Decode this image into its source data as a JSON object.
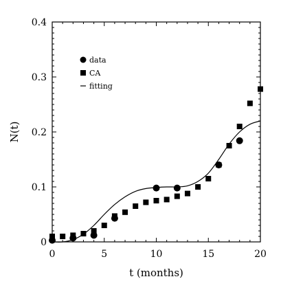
{
  "chart_data": {
    "type": "scatter",
    "xlabel": "t (months)",
    "ylabel": "N(t)",
    "xlim": [
      0,
      20
    ],
    "ylim": [
      0,
      0.4
    ],
    "x_ticks": [
      0,
      5,
      10,
      15,
      20
    ],
    "y_ticks": [
      0,
      0.1,
      0.2,
      0.3,
      0.4
    ],
    "x_tick_labels": [
      "0",
      "5",
      "10",
      "15",
      "20"
    ],
    "y_tick_labels": [
      "0",
      "0.1",
      "0.2",
      "0.3",
      "0.4"
    ],
    "grid": false,
    "legend_position": "top-left",
    "series": [
      {
        "name": "data",
        "marker": "circle",
        "x": [
          0,
          2,
          4,
          6,
          10,
          12,
          16,
          18
        ],
        "y": [
          0.003,
          0.007,
          0.012,
          0.043,
          0.098,
          0.098,
          0.14,
          0.184
        ]
      },
      {
        "name": "CA",
        "marker": "square",
        "x": [
          0,
          1,
          2,
          3,
          4,
          5,
          6,
          7,
          8,
          9,
          10,
          11,
          12,
          13,
          14,
          15,
          16,
          17,
          18,
          19,
          20
        ],
        "y": [
          0.01,
          0.01,
          0.012,
          0.015,
          0.02,
          0.03,
          0.047,
          0.054,
          0.065,
          0.072,
          0.075,
          0.077,
          0.083,
          0.088,
          0.1,
          0.115,
          0.14,
          0.175,
          0.21,
          0.252,
          0.278
        ]
      },
      {
        "name": "fitting",
        "marker": "line",
        "x": [
          0,
          1,
          2,
          3,
          4,
          5,
          6,
          7,
          8,
          9,
          10,
          11,
          12,
          13,
          14,
          15,
          16,
          17,
          18,
          19,
          20
        ],
        "y": [
          0.0,
          0.0,
          0.004,
          0.014,
          0.03,
          0.05,
          0.068,
          0.082,
          0.092,
          0.097,
          0.099,
          0.1,
          0.1,
          0.102,
          0.11,
          0.125,
          0.15,
          0.178,
          0.2,
          0.214,
          0.22
        ]
      }
    ]
  }
}
